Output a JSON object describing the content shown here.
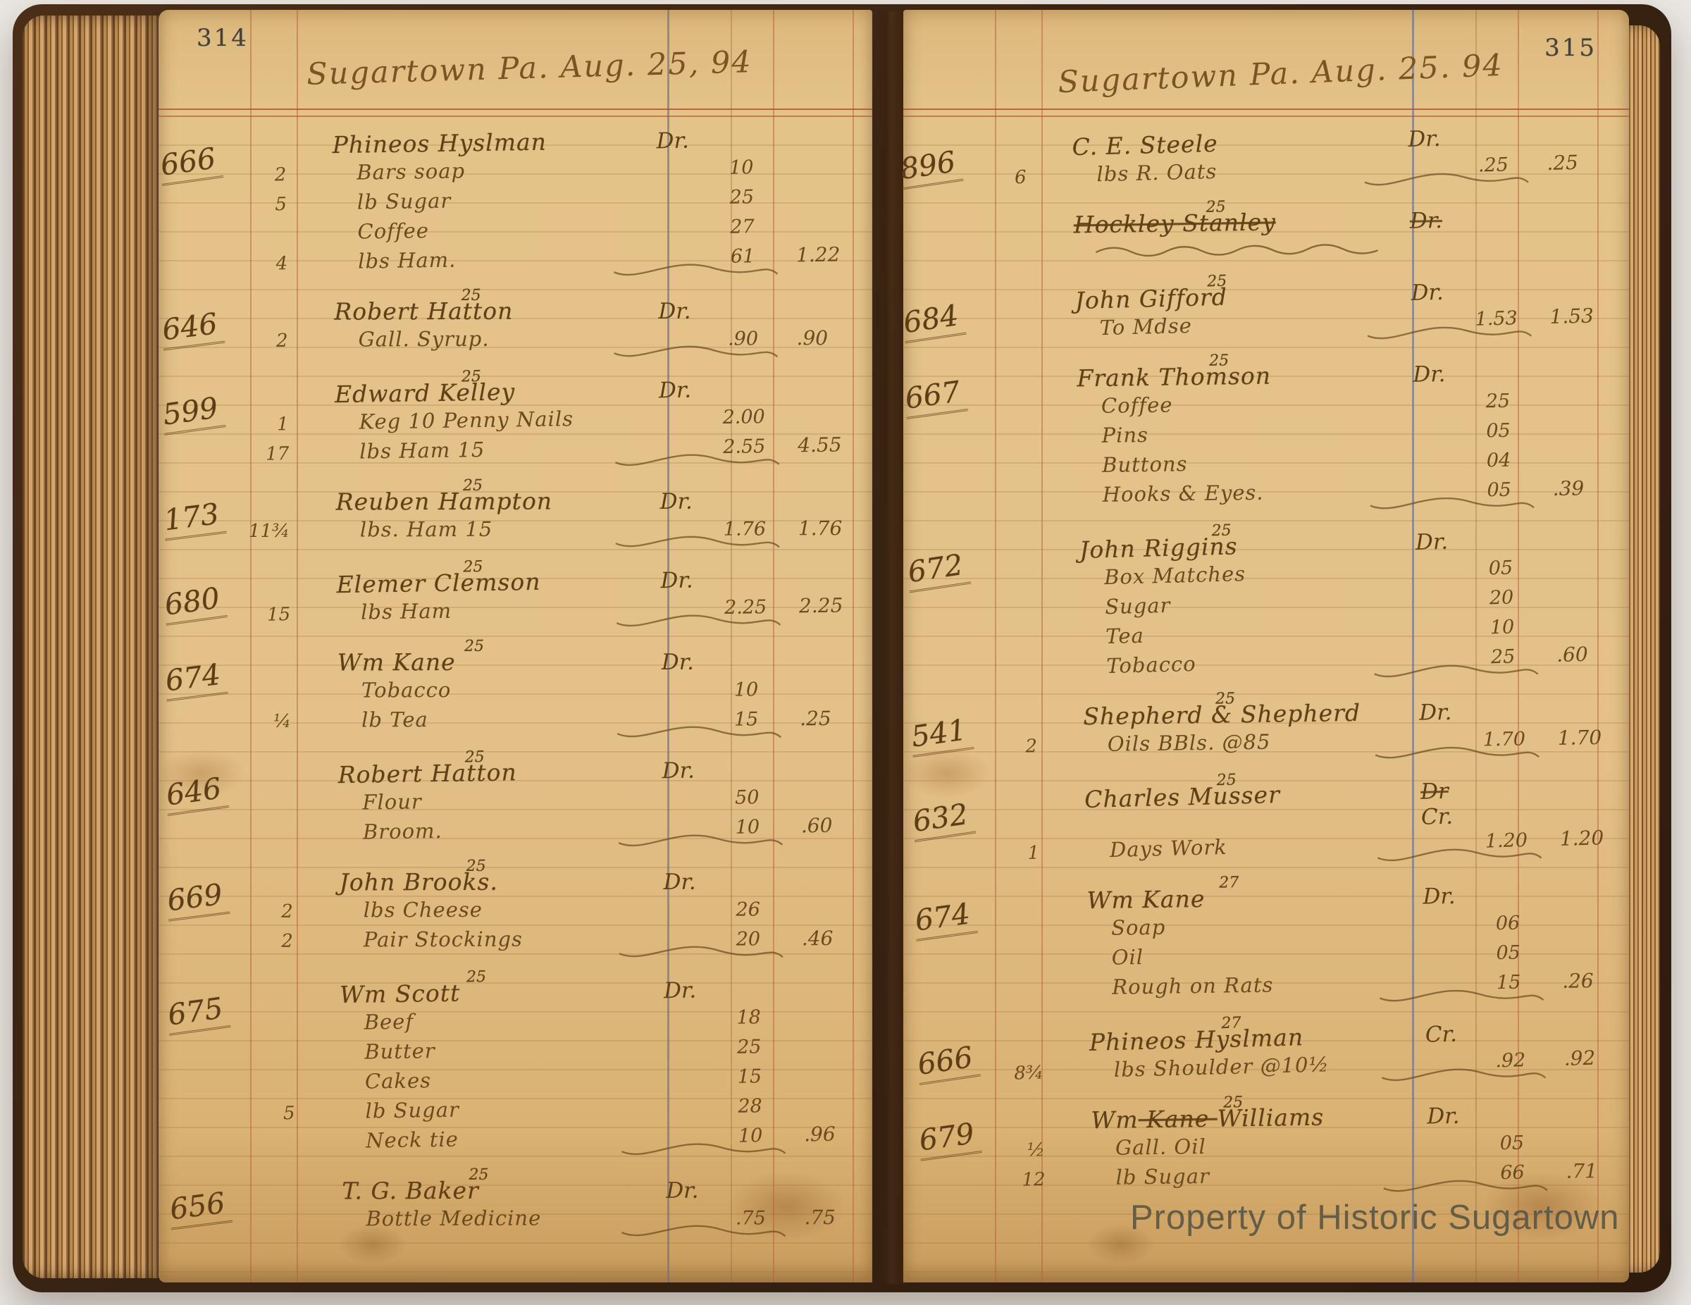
{
  "watermark": "Property of Historic Sugartown",
  "colors": {
    "page_tan": "#e3c189",
    "ink_brown": "#6b4a1d",
    "rule_red": "#ba5c3e",
    "rule_blue": "#686e92",
    "cover_brown": "#3a2413",
    "watermark_gray": "#5b5746"
  },
  "pages": [
    {
      "number": "314",
      "header": "Sugartown Pa. Aug. 25, 94",
      "entries": [
        {
          "account": "666",
          "date": "",
          "name": "Phineos Hyslman",
          "marker": "Dr.",
          "lines": [
            {
              "qty": "2",
              "desc": "Bars soap",
              "amount": "10"
            },
            {
              "qty": "5",
              "desc": "lb Sugar",
              "amount": "25"
            },
            {
              "qty": "",
              "desc": "Coffee",
              "amount": "27"
            },
            {
              "qty": "4",
              "desc": "lbs Ham.",
              "amount": "61",
              "total": "1.22"
            }
          ]
        },
        {
          "account": "646",
          "date": "25",
          "name": "Robert Hatton",
          "marker": "Dr.",
          "lines": [
            {
              "qty": "2",
              "desc": "Gall. Syrup.",
              "amount": ".90",
              "total": ".90"
            }
          ]
        },
        {
          "account": "599",
          "date": "25",
          "name": "Edward Kelley",
          "marker": "Dr.",
          "lines": [
            {
              "qty": "1",
              "desc": "Keg 10 Penny Nails",
              "amount": "2.00"
            },
            {
              "qty": "17",
              "desc": "lbs Ham 15",
              "amount": "2.55",
              "total": "4.55"
            }
          ]
        },
        {
          "account": "173",
          "date": "25",
          "name": "Reuben Hampton",
          "marker": "Dr.",
          "lines": [
            {
              "qty": "11¾",
              "desc": "lbs. Ham 15",
              "amount": "1.76",
              "total": "1.76"
            }
          ]
        },
        {
          "account": "680",
          "date": "25",
          "name": "Elemer Clemson",
          "marker": "Dr.",
          "lines": [
            {
              "qty": "15",
              "desc": "lbs Ham",
              "amount": "2.25",
              "total": "2.25"
            }
          ]
        },
        {
          "account": "674",
          "date": "25",
          "name": "Wm Kane",
          "marker": "Dr.",
          "lines": [
            {
              "qty": "",
              "desc": "Tobacco",
              "amount": "10"
            },
            {
              "qty": "¼",
              "desc": "lb Tea",
              "amount": "15",
              "total": ".25"
            }
          ]
        },
        {
          "account": "646",
          "date": "25",
          "name": "Robert Hatton",
          "marker": "Dr.",
          "lines": [
            {
              "qty": "",
              "desc": "Flour",
              "amount": "50"
            },
            {
              "qty": "",
              "desc": "Broom.",
              "amount": "10",
              "total": ".60"
            }
          ]
        },
        {
          "account": "669",
          "date": "25",
          "name": "John Brooks.",
          "marker": "Dr.",
          "lines": [
            {
              "qty": "2",
              "desc": "lbs Cheese",
              "amount": "26"
            },
            {
              "qty": "2",
              "desc": "Pair Stockings",
              "amount": "20",
              "total": ".46"
            }
          ]
        },
        {
          "account": "675",
          "date": "25",
          "name": "Wm Scott",
          "marker": "Dr.",
          "lines": [
            {
              "qty": "",
              "desc": "Beef",
              "amount": "18"
            },
            {
              "qty": "",
              "desc": "Butter",
              "amount": "25"
            },
            {
              "qty": "",
              "desc": "Cakes",
              "amount": "15"
            },
            {
              "qty": "5",
              "desc": "lb Sugar",
              "amount": "28"
            },
            {
              "qty": "",
              "desc": "Neck tie",
              "amount": "10",
              "total": ".96"
            }
          ]
        },
        {
          "account": "656",
          "date": "25",
          "name": "T. G. Baker",
          "marker": "Dr.",
          "lines": [
            {
              "qty": "",
              "desc": "Bottle Medicine",
              "amount": ".75",
              "total": ".75"
            }
          ]
        }
      ]
    },
    {
      "number": "315",
      "header": "Sugartown Pa. Aug. 25. 94",
      "entries": [
        {
          "account": "896",
          "date": "",
          "name": "C. E. Steele",
          "marker": "Dr.",
          "lines": [
            {
              "qty": "6",
              "desc": "lbs R. Oats",
              "amount": ".25",
              "total": ".25"
            }
          ]
        },
        {
          "account": "",
          "date": "25",
          "name": "Hockley Stanley",
          "marker": "Dr.",
          "struck": true,
          "squiggle": true,
          "lines": []
        },
        {
          "account": "684",
          "date": "25",
          "name": "John Gifford",
          "marker": "Dr.",
          "lines": [
            {
              "qty": "",
              "desc": "To Mdse",
              "amount": "1.53",
              "total": "1.53"
            }
          ]
        },
        {
          "account": "667",
          "date": "25",
          "name": "Frank Thomson",
          "marker": "Dr.",
          "lines": [
            {
              "qty": "",
              "desc": "Coffee",
              "amount": "25"
            },
            {
              "qty": "",
              "desc": "Pins",
              "amount": "05"
            },
            {
              "qty": "",
              "desc": "Buttons",
              "amount": "04"
            },
            {
              "qty": "",
              "desc": "Hooks & Eyes.",
              "amount": "05",
              "total": ".39"
            }
          ]
        },
        {
          "account": "672",
          "date": "25",
          "name": "John Riggins",
          "marker": "Dr.",
          "lines": [
            {
              "qty": "",
              "desc": "Box Matches",
              "amount": "05"
            },
            {
              "qty": "",
              "desc": "Sugar",
              "amount": "20"
            },
            {
              "qty": "",
              "desc": "Tea",
              "amount": "10"
            },
            {
              "qty": "",
              "desc": "Tobacco",
              "amount": "25",
              "total": ".60"
            }
          ]
        },
        {
          "account": "541",
          "date": "25",
          "name": "Shepherd & Shepherd",
          "marker": "Dr.",
          "lines": [
            {
              "qty": "2",
              "desc": "Oils BBls. @85",
              "amount": "1.70",
              "total": "1.70"
            }
          ]
        },
        {
          "account": "632",
          "date": "25",
          "name": "Charles Musser",
          "marker": "Cr.",
          "marker_struck": "Dr",
          "lines": [
            {
              "qty": "1",
              "desc": "Days Work",
              "amount": "1.20",
              "total": "1.20"
            }
          ]
        },
        {
          "account": "674",
          "date": "27",
          "name": "Wm Kane",
          "marker": "Dr.",
          "lines": [
            {
              "qty": "",
              "desc": "Soap",
              "amount": "06"
            },
            {
              "qty": "",
              "desc": "Oil",
              "amount": "05"
            },
            {
              "qty": "",
              "desc": "Rough on Rats",
              "amount": "15",
              "total": ".26"
            }
          ]
        },
        {
          "account": "666",
          "date": "27",
          "name": "Phineos Hyslman",
          "marker": "Cr.",
          "lines": [
            {
              "qty": "8¾",
              "desc": "lbs Shoulder @10½",
              "amount": ".92",
              "total": ".92"
            }
          ]
        },
        {
          "account": "679",
          "date": "25",
          "name": "Wm",
          "name_struck": "Kane",
          "name_post": "Williams",
          "marker": "Dr.",
          "lines": [
            {
              "qty": "½",
              "desc": "Gall. Oil",
              "amount": "05"
            },
            {
              "qty": "12",
              "desc": "lb Sugar",
              "amount": "66",
              "total": ".71"
            }
          ]
        }
      ]
    }
  ]
}
